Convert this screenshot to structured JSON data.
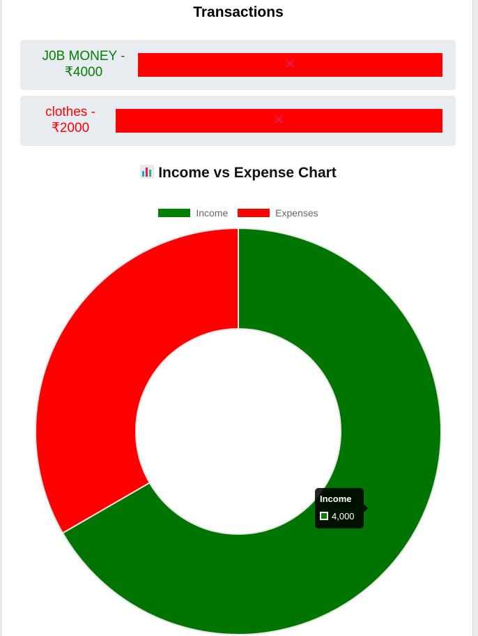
{
  "page": {
    "title": "Transactions"
  },
  "transactions": [
    {
      "label_line1": "J0B MONEY -",
      "label_line2": "₹4000",
      "type": "income",
      "color": "#008000",
      "delete_icon": "✕"
    },
    {
      "label_line1": "clothes -",
      "label_line2": "₹2000",
      "type": "expense",
      "color": "#ff0000",
      "delete_icon": "✕"
    }
  ],
  "chart_section": {
    "icon": "bar-chart-emoji",
    "title": "Income vs Expense Chart"
  },
  "chart_data": {
    "type": "pie",
    "variant": "doughnut",
    "categories": [
      "Income",
      "Expenses"
    ],
    "values": [
      4000,
      2000
    ],
    "colors": [
      "#007400",
      "#ff0000"
    ],
    "legend_position": "top",
    "tooltip": {
      "title": "Income",
      "value": "4,000",
      "color": "#008000"
    }
  }
}
